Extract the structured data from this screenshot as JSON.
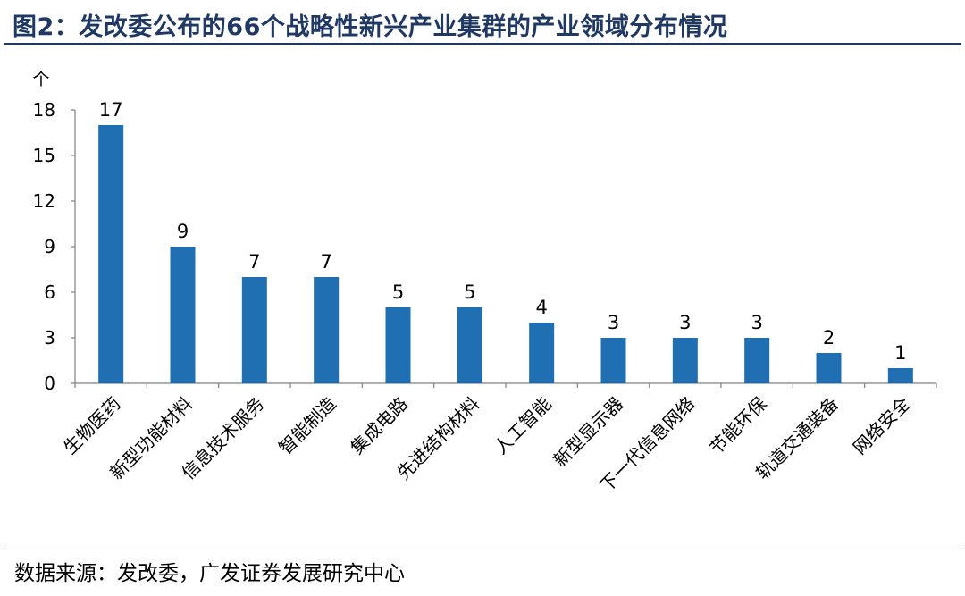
{
  "figure": {
    "title": "图2：发改委公布的66个战略性新兴产业集群的产业领域分布情况",
    "source": "数据来源：发改委，广发证券发展研究中心"
  },
  "chart_data": {
    "type": "bar",
    "unit_label": "个",
    "categories": [
      "生物医药",
      "新型功能材料",
      "信息技术服务",
      "智能制造",
      "集成电路",
      "先进结构材料",
      "人工智能",
      "新型显示器",
      "下一代信息网络",
      "节能环保",
      "轨道交通装备",
      "网络安全"
    ],
    "values": [
      17,
      9,
      7,
      7,
      5,
      5,
      4,
      3,
      3,
      3,
      2,
      1
    ],
    "ylim": [
      0,
      18
    ],
    "yticks": [
      0,
      3,
      6,
      9,
      12,
      15,
      18
    ],
    "grid": false,
    "legend": "none",
    "bar_color": "#1f6fb2",
    "axis_color": "#808080"
  }
}
